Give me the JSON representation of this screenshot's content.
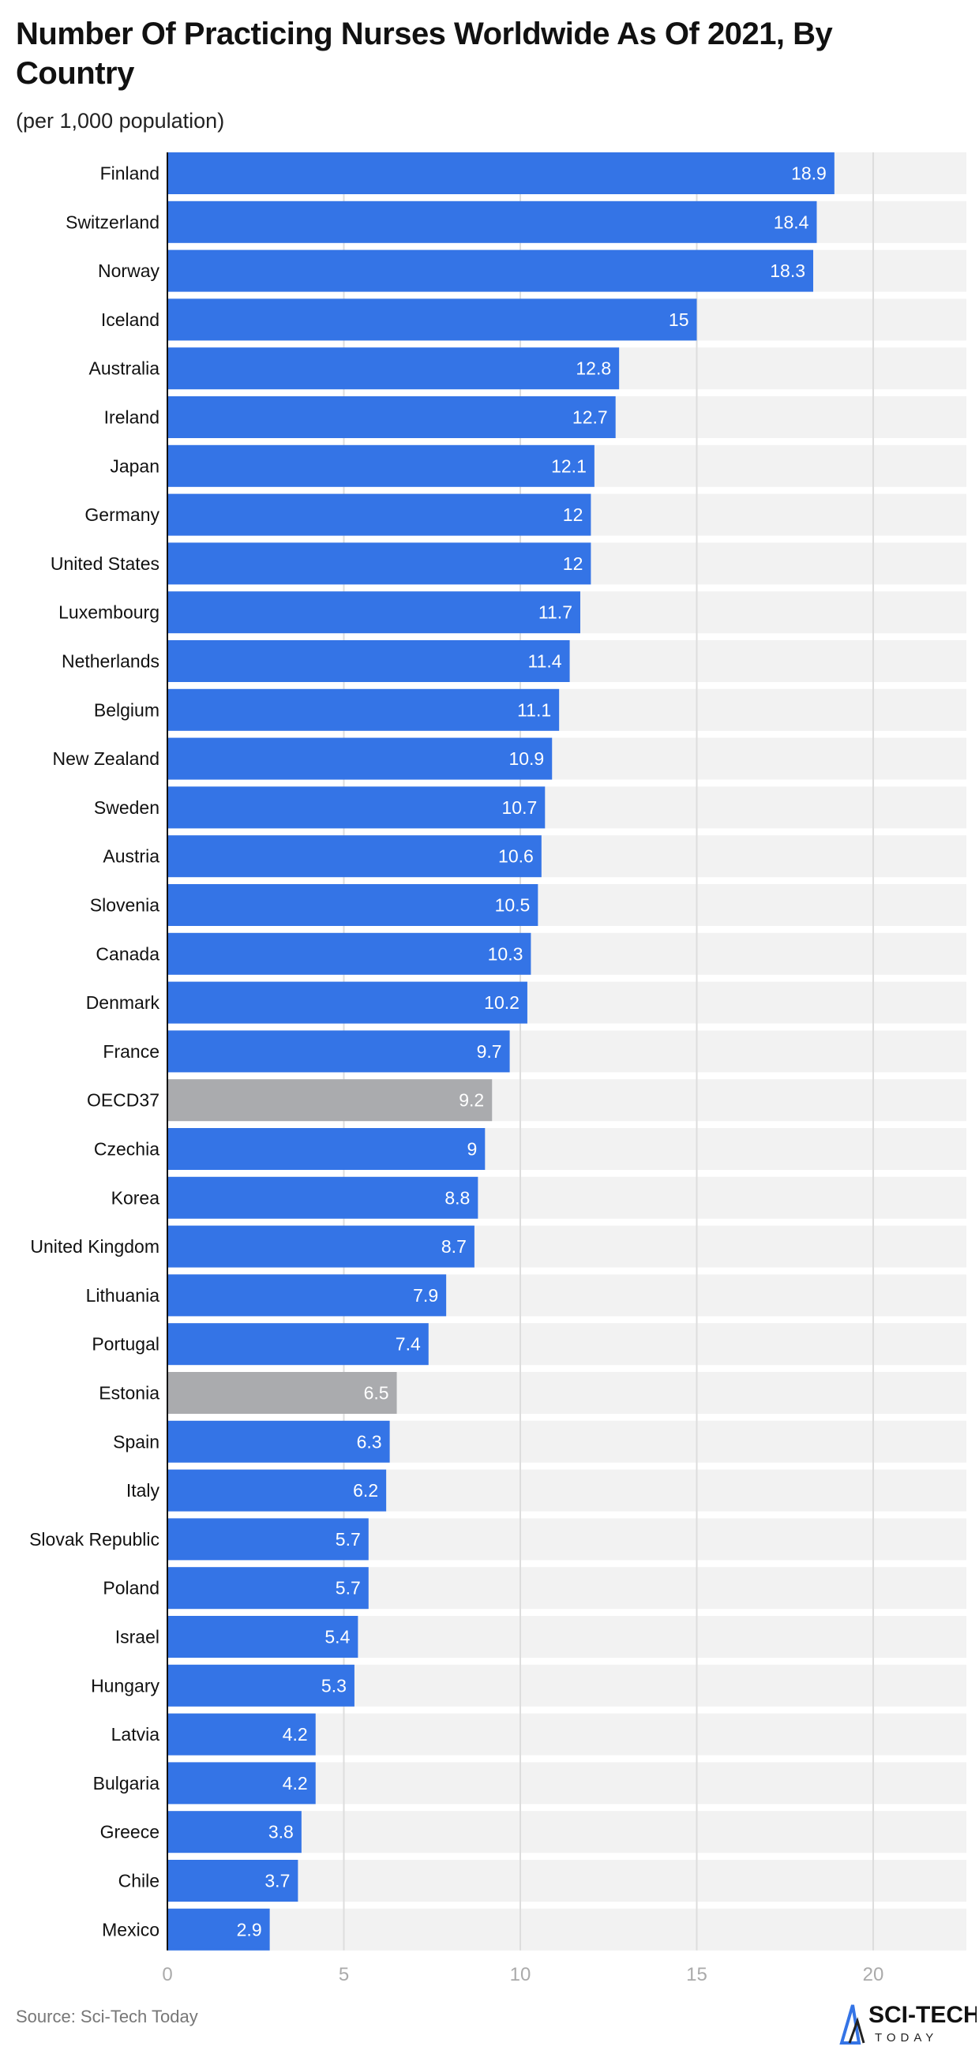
{
  "chart_data": {
    "type": "bar",
    "orientation": "horizontal",
    "title": "Number Of Practicing Nurses Worldwide As Of 2021, By Country",
    "subtitle": "(per 1,000 population)",
    "categories": [
      "Finland",
      "Switzerland",
      "Norway",
      "Iceland",
      "Australia",
      "Ireland",
      "Japan",
      "Germany",
      "United States",
      "Luxembourg",
      "Netherlands",
      "Belgium",
      "New Zealand",
      "Sweden",
      "Austria",
      "Slovenia",
      "Canada",
      "Denmark",
      "France",
      "OECD37",
      "Czechia",
      "Korea",
      "United Kingdom",
      "Lithuania",
      "Portugal",
      "Estonia",
      "Spain",
      "Italy",
      "Slovak Republic",
      "Poland",
      "Israel",
      "Hungary",
      "Latvia",
      "Bulgaria",
      "Greece",
      "Chile",
      "Mexico"
    ],
    "values": [
      18.9,
      18.4,
      18.3,
      15,
      12.8,
      12.7,
      12.1,
      12,
      12,
      11.7,
      11.4,
      11.1,
      10.9,
      10.7,
      10.6,
      10.5,
      10.3,
      10.2,
      9.7,
      9.2,
      9,
      8.8,
      8.7,
      7.9,
      7.4,
      6.5,
      6.3,
      6.2,
      5.7,
      5.7,
      5.4,
      5.3,
      4.2,
      4.2,
      3.8,
      3.7,
      2.9
    ],
    "highlighted": [
      "OECD37",
      "Estonia"
    ],
    "xlim": [
      0,
      22.5
    ],
    "xticks": [
      0,
      5,
      10,
      15,
      20
    ],
    "grid": true,
    "colors": {
      "bar": "#3474e6",
      "highlight": "#aaabae",
      "track": "#f2f2f2",
      "grid": "#dddddd"
    }
  },
  "source": "Source: Sci-Tech Today",
  "logo": {
    "text": "SCI-TECH",
    "subtext": "TODAY"
  }
}
